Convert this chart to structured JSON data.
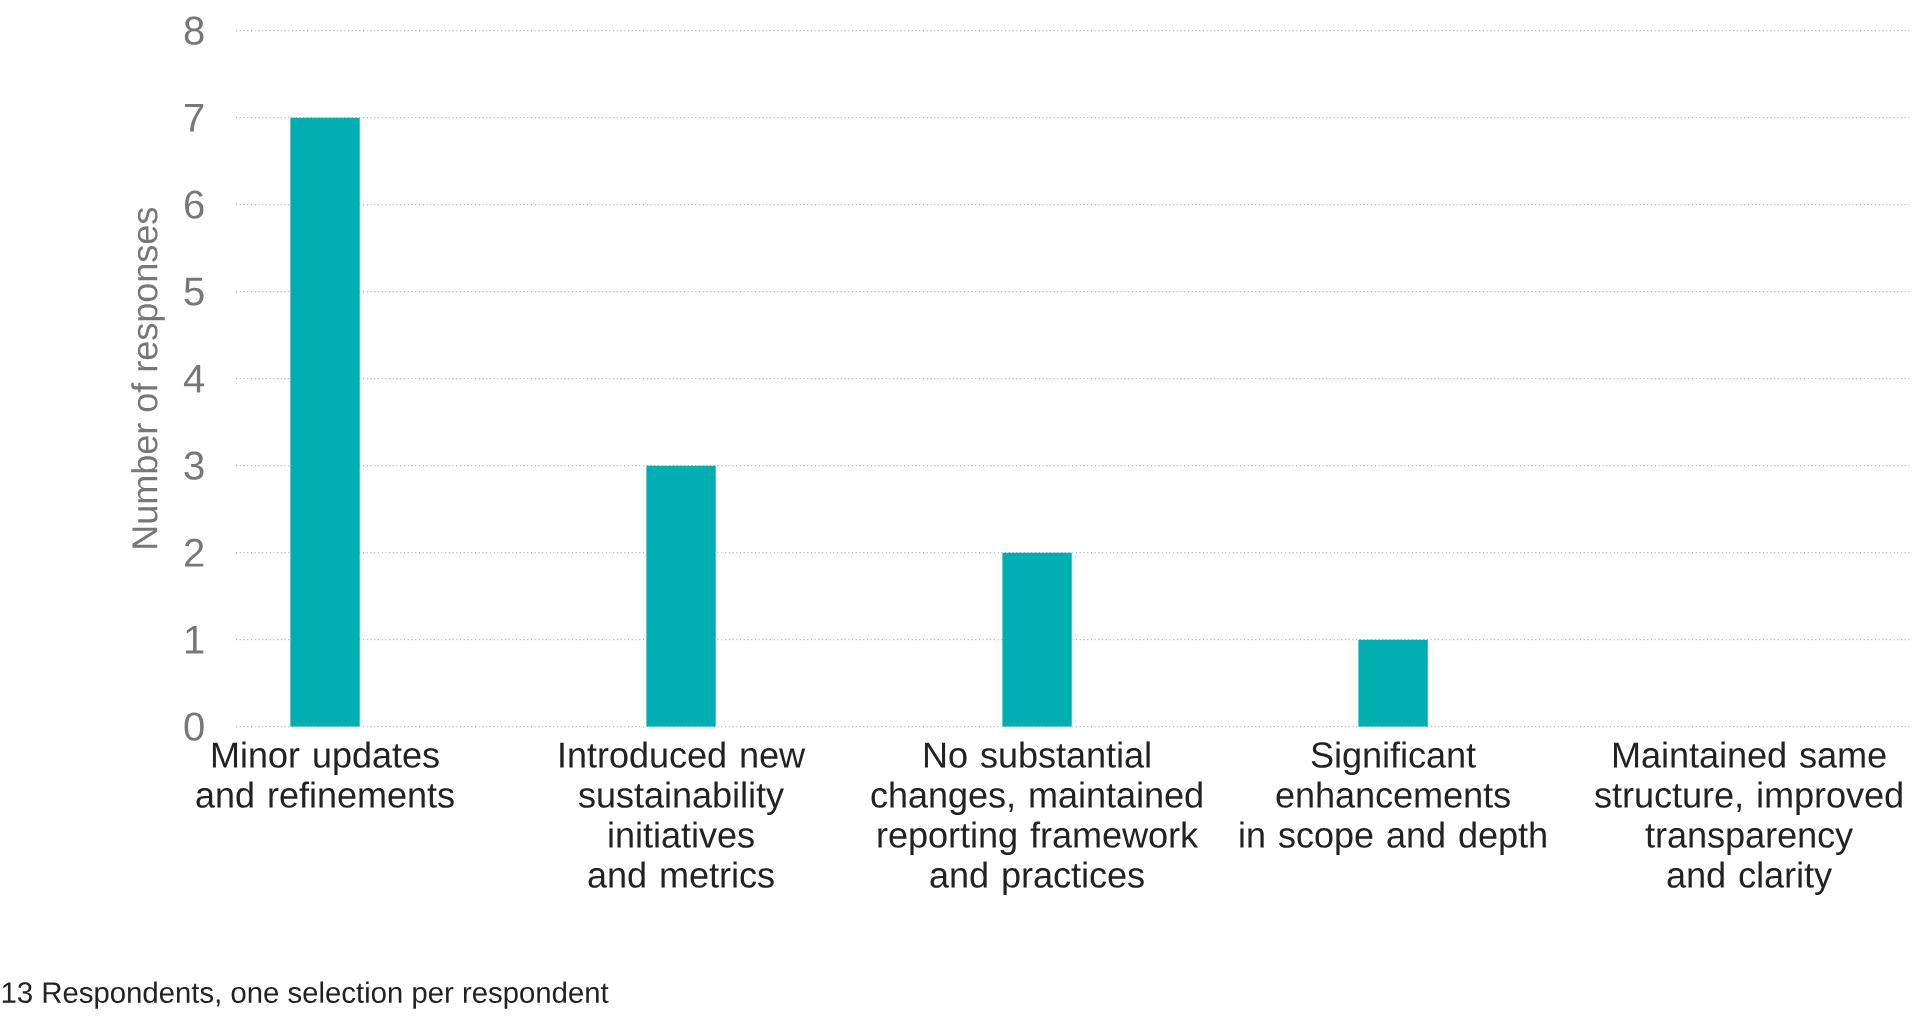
{
  "chart_data": {
    "type": "bar",
    "ylabel": "Number of responses",
    "categories": [
      "Minor updates and refinements",
      "Introduced new sustainability initiatives and metrics",
      "No substantial changes, maintained reporting framework and practices",
      "Significant enhancements in scope and depth",
      "Maintained same structure, improved transparency and clarity"
    ],
    "values": [
      7,
      3,
      2,
      1,
      0
    ],
    "color": "#00adb0",
    "ylim": [
      0,
      8
    ],
    "yticks": [
      0,
      1,
      2,
      3,
      4,
      5,
      6,
      7,
      8
    ],
    "grid": "y",
    "annotations": [
      "13 Respondents, one selection per respondent"
    ]
  }
}
